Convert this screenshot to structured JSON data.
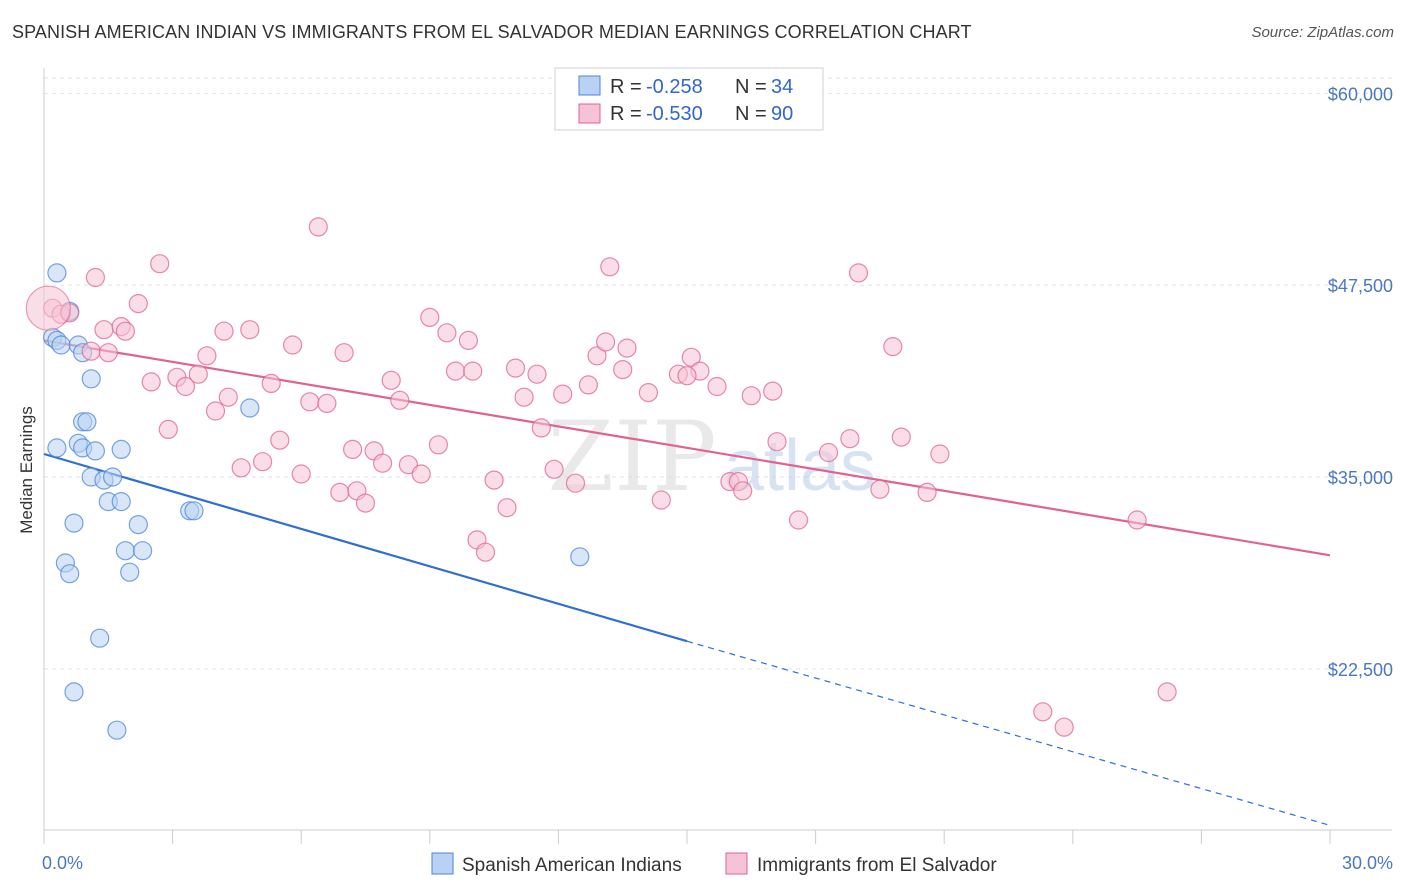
{
  "title": "SPANISH AMERICAN INDIAN VS IMMIGRANTS FROM EL SALVADOR MEDIAN EARNINGS CORRELATION CHART",
  "source": "Source: ZipAtlas.com",
  "watermark": {
    "zip": "ZIP",
    "atlas": "atlas"
  },
  "colors": {
    "blue": "#4a86d8",
    "blue_fill": "#b9d1f2",
    "pink": "#e0628f",
    "pink_fill": "#f6c3d3",
    "value_blue": "#3366cc"
  },
  "legend_top": [
    {
      "r_label": "R =",
      "r_value": "-0.258",
      "n_label": "N =",
      "n_value": "34"
    },
    {
      "r_label": "R =",
      "r_value": "-0.530",
      "n_label": "N =",
      "n_value": "90"
    }
  ],
  "chart_data": {
    "type": "scatter",
    "xlabel": "",
    "ylabel": "Median Earnings",
    "xlim": [
      0,
      30
    ],
    "ylim": [
      12000,
      61000
    ],
    "x_tick_labels": [
      "0.0%",
      "30.0%"
    ],
    "y_ticks": [
      22500,
      35000,
      47500,
      60000
    ],
    "y_tick_labels": [
      "$22,500",
      "$35,000",
      "$47,500",
      "$60,000"
    ],
    "grid": "horizontal dashed",
    "legend": "bottom-center",
    "series": [
      {
        "name": "Spanish American Indians",
        "color": "#4a86d8",
        "trend": {
          "x": [
            0,
            15
          ],
          "y": [
            36500,
            24300
          ],
          "extended_to": [
            30,
            12300
          ]
        },
        "points": [
          [
            0.2,
            44100
          ],
          [
            0.3,
            43900
          ],
          [
            0.3,
            36900
          ],
          [
            0.4,
            43600
          ],
          [
            0.3,
            48300
          ],
          [
            0.6,
            45800
          ],
          [
            0.5,
            29400
          ],
          [
            0.6,
            28700
          ],
          [
            0.7,
            32000
          ],
          [
            0.7,
            21000
          ],
          [
            0.8,
            43600
          ],
          [
            0.9,
            43100
          ],
          [
            0.8,
            37200
          ],
          [
            0.9,
            36900
          ],
          [
            0.9,
            38600
          ],
          [
            1.0,
            38600
          ],
          [
            1.1,
            41400
          ],
          [
            1.1,
            35000
          ],
          [
            1.2,
            36700
          ],
          [
            1.3,
            24500
          ],
          [
            1.4,
            34800
          ],
          [
            1.5,
            33400
          ],
          [
            1.6,
            35000
          ],
          [
            1.7,
            18500
          ],
          [
            1.8,
            33400
          ],
          [
            1.8,
            36800
          ],
          [
            1.9,
            30200
          ],
          [
            2.0,
            28800
          ],
          [
            2.2,
            31900
          ],
          [
            2.3,
            30200
          ],
          [
            3.4,
            32800
          ],
          [
            3.5,
            32800
          ],
          [
            4.8,
            39500
          ],
          [
            12.5,
            29800
          ]
        ]
      },
      {
        "name": "Immigrants from El Salvador",
        "color": "#e0628f",
        "trend": {
          "x": [
            0,
            30
          ],
          "y": [
            43900,
            29900
          ]
        },
        "points": [
          [
            0.2,
            46000
          ],
          [
            0.4,
            45600
          ],
          [
            0.6,
            45700
          ],
          [
            1.2,
            48000
          ],
          [
            1.1,
            43200
          ],
          [
            1.4,
            44600
          ],
          [
            1.5,
            43100
          ],
          [
            1.8,
            44800
          ],
          [
            1.9,
            44500
          ],
          [
            2.2,
            46300
          ],
          [
            2.5,
            41200
          ],
          [
            2.7,
            48900
          ],
          [
            2.9,
            38100
          ],
          [
            3.1,
            41500
          ],
          [
            3.3,
            40900
          ],
          [
            3.6,
            41700
          ],
          [
            3.8,
            42900
          ],
          [
            4.0,
            39300
          ],
          [
            4.2,
            44500
          ],
          [
            4.3,
            40200
          ],
          [
            4.6,
            35600
          ],
          [
            4.8,
            44600
          ],
          [
            5.1,
            36000
          ],
          [
            5.3,
            41100
          ],
          [
            5.5,
            37400
          ],
          [
            5.8,
            43600
          ],
          [
            6.0,
            35200
          ],
          [
            6.2,
            39900
          ],
          [
            6.4,
            51300
          ],
          [
            6.6,
            39800
          ],
          [
            6.9,
            34000
          ],
          [
            7.0,
            43100
          ],
          [
            7.2,
            36800
          ],
          [
            7.3,
            34100
          ],
          [
            7.5,
            33300
          ],
          [
            7.7,
            36700
          ],
          [
            7.9,
            35900
          ],
          [
            8.1,
            41300
          ],
          [
            8.3,
            40000
          ],
          [
            8.5,
            35800
          ],
          [
            8.8,
            35200
          ],
          [
            9.0,
            45400
          ],
          [
            9.2,
            37100
          ],
          [
            9.4,
            44400
          ],
          [
            9.6,
            41900
          ],
          [
            9.9,
            43900
          ],
          [
            10.0,
            41900
          ],
          [
            10.1,
            30900
          ],
          [
            10.3,
            30100
          ],
          [
            10.5,
            34800
          ],
          [
            10.8,
            33000
          ],
          [
            11.0,
            42100
          ],
          [
            11.2,
            40200
          ],
          [
            11.5,
            41700
          ],
          [
            11.6,
            38200
          ],
          [
            11.9,
            35500
          ],
          [
            12.1,
            40400
          ],
          [
            12.4,
            34600
          ],
          [
            12.7,
            41000
          ],
          [
            12.9,
            42900
          ],
          [
            13.1,
            43800
          ],
          [
            13.2,
            48700
          ],
          [
            13.5,
            42000
          ],
          [
            13.6,
            43400
          ],
          [
            14.1,
            40500
          ],
          [
            14.4,
            33500
          ],
          [
            14.8,
            41700
          ],
          [
            15.1,
            42800
          ],
          [
            15.3,
            41900
          ],
          [
            15.7,
            40900
          ],
          [
            16.0,
            34700
          ],
          [
            16.2,
            34700
          ],
          [
            16.3,
            34100
          ],
          [
            16.5,
            40300
          ],
          [
            17.0,
            40600
          ],
          [
            17.1,
            37300
          ],
          [
            17.6,
            32200
          ],
          [
            18.3,
            36600
          ],
          [
            18.8,
            37500
          ],
          [
            19.0,
            48300
          ],
          [
            19.5,
            34200
          ],
          [
            19.8,
            43500
          ],
          [
            20.0,
            37600
          ],
          [
            20.6,
            34000
          ],
          [
            20.9,
            36500
          ],
          [
            23.3,
            19700
          ],
          [
            23.8,
            18700
          ],
          [
            25.5,
            32200
          ],
          [
            26.2,
            21000
          ],
          [
            15.0,
            41600
          ]
        ]
      }
    ]
  }
}
